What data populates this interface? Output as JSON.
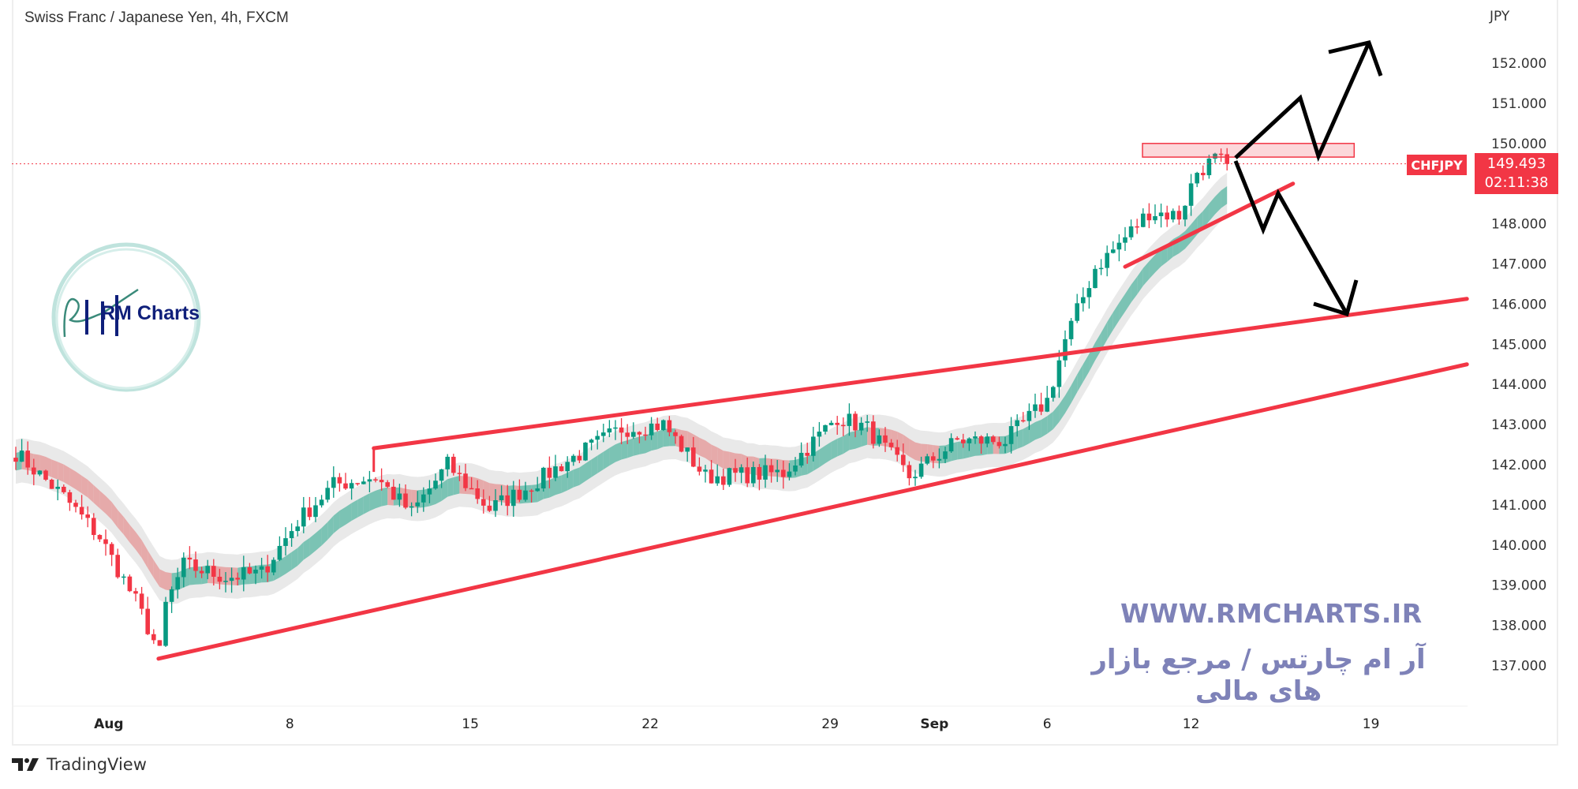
{
  "header": {
    "title": "Swiss Franc / Japanese Yen, 4h, FXCM"
  },
  "price_scale": {
    "currency": "JPY"
  },
  "last_price": {
    "symbol": "CHFJPY",
    "price": "149.493",
    "countdown": "02:11:38"
  },
  "watermark": {
    "url": "WWW.RMCHARTS.IR",
    "tagline": "آر ام چارتس / مرجع بازار های مالی"
  },
  "logo": {
    "text": "RM Charts",
    "mark": "RM"
  },
  "footer": {
    "brand": "TradingView"
  },
  "colors": {
    "up": "#089981",
    "down": "#f23645",
    "drawing": "#f23645",
    "arrows": "#000000",
    "watermark": "#7e82b8"
  },
  "chart_data": {
    "type": "candlestick",
    "title": "Swiss Franc / Japanese Yen, 4h, FXCM",
    "ylabel": "JPY",
    "ylim": [
      136,
      153
    ],
    "yticks": [
      "152.000",
      "151.000",
      "150.000",
      "148.000",
      "147.000",
      "146.000",
      "145.000",
      "144.000",
      "143.000",
      "142.000",
      "141.000",
      "140.000",
      "139.000",
      "138.000",
      "137.000"
    ],
    "xticks": [
      {
        "label": "Aug",
        "bar": 15.5,
        "bold": true
      },
      {
        "label": "8",
        "bar": 45.7
      },
      {
        "label": "15",
        "bar": 75.8
      },
      {
        "label": "22",
        "bar": 105.8
      },
      {
        "label": "29",
        "bar": 135.8
      },
      {
        "label": "Sep",
        "bar": 153.2,
        "bold": true
      },
      {
        "label": "6",
        "bar": 172
      },
      {
        "label": "12",
        "bar": 196
      },
      {
        "label": "19",
        "bar": 226
      }
    ],
    "price_path": [
      [
        0,
        142.3
      ],
      [
        8,
        141.2
      ],
      [
        14,
        140.2
      ],
      [
        20,
        138.6
      ],
      [
        24,
        137.3
      ],
      [
        25,
        138.5
      ],
      [
        28,
        139.5
      ],
      [
        35,
        139.2
      ],
      [
        41,
        139.3
      ],
      [
        47,
        140.6
      ],
      [
        53,
        141.5
      ],
      [
        60,
        141.7
      ],
      [
        66,
        140.8
      ],
      [
        72,
        142.0
      ],
      [
        79,
        140.9
      ],
      [
        85,
        141.4
      ],
      [
        91,
        142.0
      ],
      [
        101,
        142.9
      ],
      [
        108,
        143.0
      ],
      [
        115,
        141.7
      ],
      [
        128,
        141.8
      ],
      [
        137,
        143.2
      ],
      [
        142,
        142.9
      ],
      [
        149,
        141.7
      ],
      [
        157,
        142.6
      ],
      [
        165,
        142.6
      ],
      [
        172,
        143.6
      ],
      [
        175,
        145.1
      ],
      [
        180,
        146.9
      ],
      [
        184,
        147.5
      ],
      [
        189,
        148.3
      ],
      [
        194,
        148.2
      ],
      [
        197,
        149.3
      ],
      [
        200,
        149.6
      ],
      [
        202,
        149.49
      ]
    ],
    "last_bar": 202,
    "drawings": {
      "lower_trendline": [
        [
          23.8,
          137.17
        ],
        [
          242,
          144.5
        ]
      ],
      "upper_channel_line": [
        [
          59.7,
          142.41
        ],
        [
          242,
          146.13
        ]
      ],
      "short_trendline": [
        [
          185,
          146.93
        ],
        [
          213,
          149.0
        ]
      ],
      "resistance_zone": {
        "bars": [
          187.9,
          223.2
        ],
        "prices": [
          149.66,
          150.0
        ]
      }
    }
  }
}
